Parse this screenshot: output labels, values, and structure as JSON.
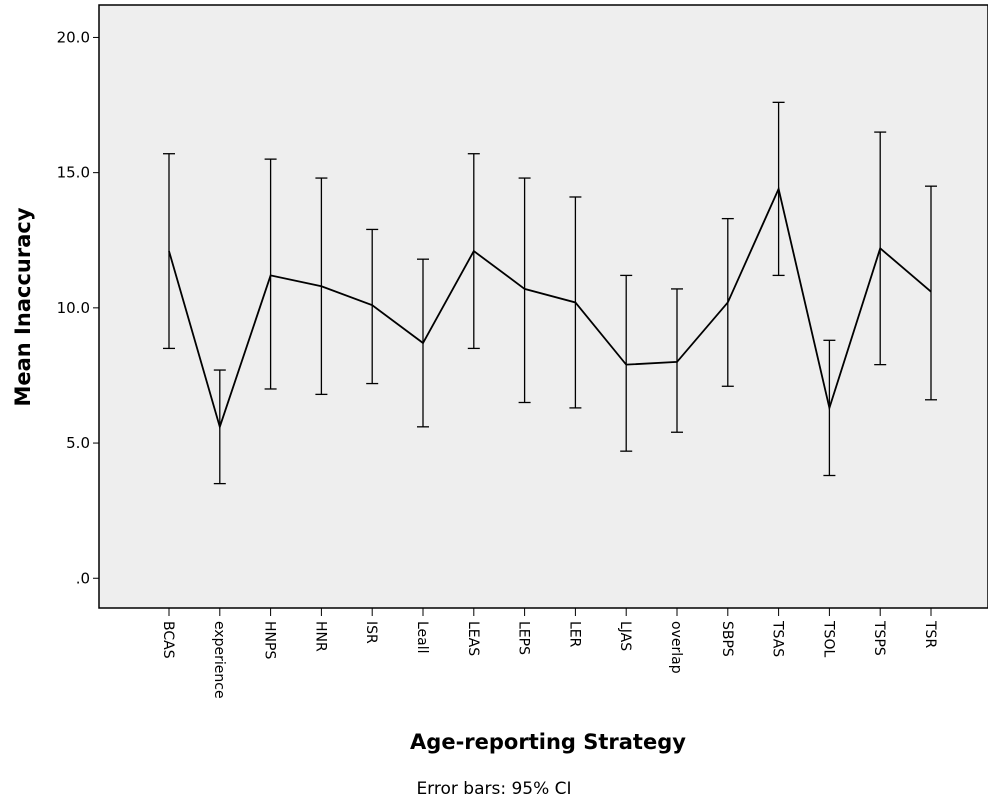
{
  "chart_data": {
    "type": "line",
    "title": "",
    "xlabel": "Age-reporting Strategy",
    "ylabel": "Mean Inaccuracy",
    "footnote": "Error bars: 95% CI",
    "ylim": [
      -1.1,
      21.2
    ],
    "yticks": [
      0,
      5,
      10,
      15,
      20
    ],
    "ytick_labels": [
      ".0",
      "5.0",
      "10.0",
      "15.0",
      "20.0"
    ],
    "grid": false,
    "legend": "none",
    "categories": [
      "BCAS",
      "experience",
      "HNPS",
      "HNR",
      "ISR",
      "Leall",
      "LEAS",
      "LEPS",
      "LER",
      "LJAS",
      "overlap",
      "SBPS",
      "TSAS",
      "TSOL",
      "TSPS",
      "TSR"
    ],
    "series": [
      {
        "values": [
          12.1,
          5.6,
          11.2,
          10.8,
          10.1,
          8.7,
          12.1,
          10.7,
          10.2,
          7.9,
          8.0,
          10.2,
          14.4,
          6.3,
          12.2,
          10.6
        ],
        "ci_lower": [
          8.5,
          3.5,
          7.0,
          6.8,
          7.2,
          5.6,
          8.5,
          6.5,
          6.3,
          4.7,
          5.4,
          7.1,
          11.2,
          3.8,
          7.9,
          6.6
        ],
        "ci_upper": [
          15.7,
          7.7,
          15.5,
          14.8,
          12.9,
          11.8,
          15.7,
          14.8,
          14.1,
          11.2,
          10.7,
          13.3,
          17.6,
          8.8,
          16.5,
          14.5
        ]
      }
    ],
    "colors": {
      "plot_background": "#eeeeee",
      "line": "#000000",
      "axis": "#000000"
    }
  }
}
